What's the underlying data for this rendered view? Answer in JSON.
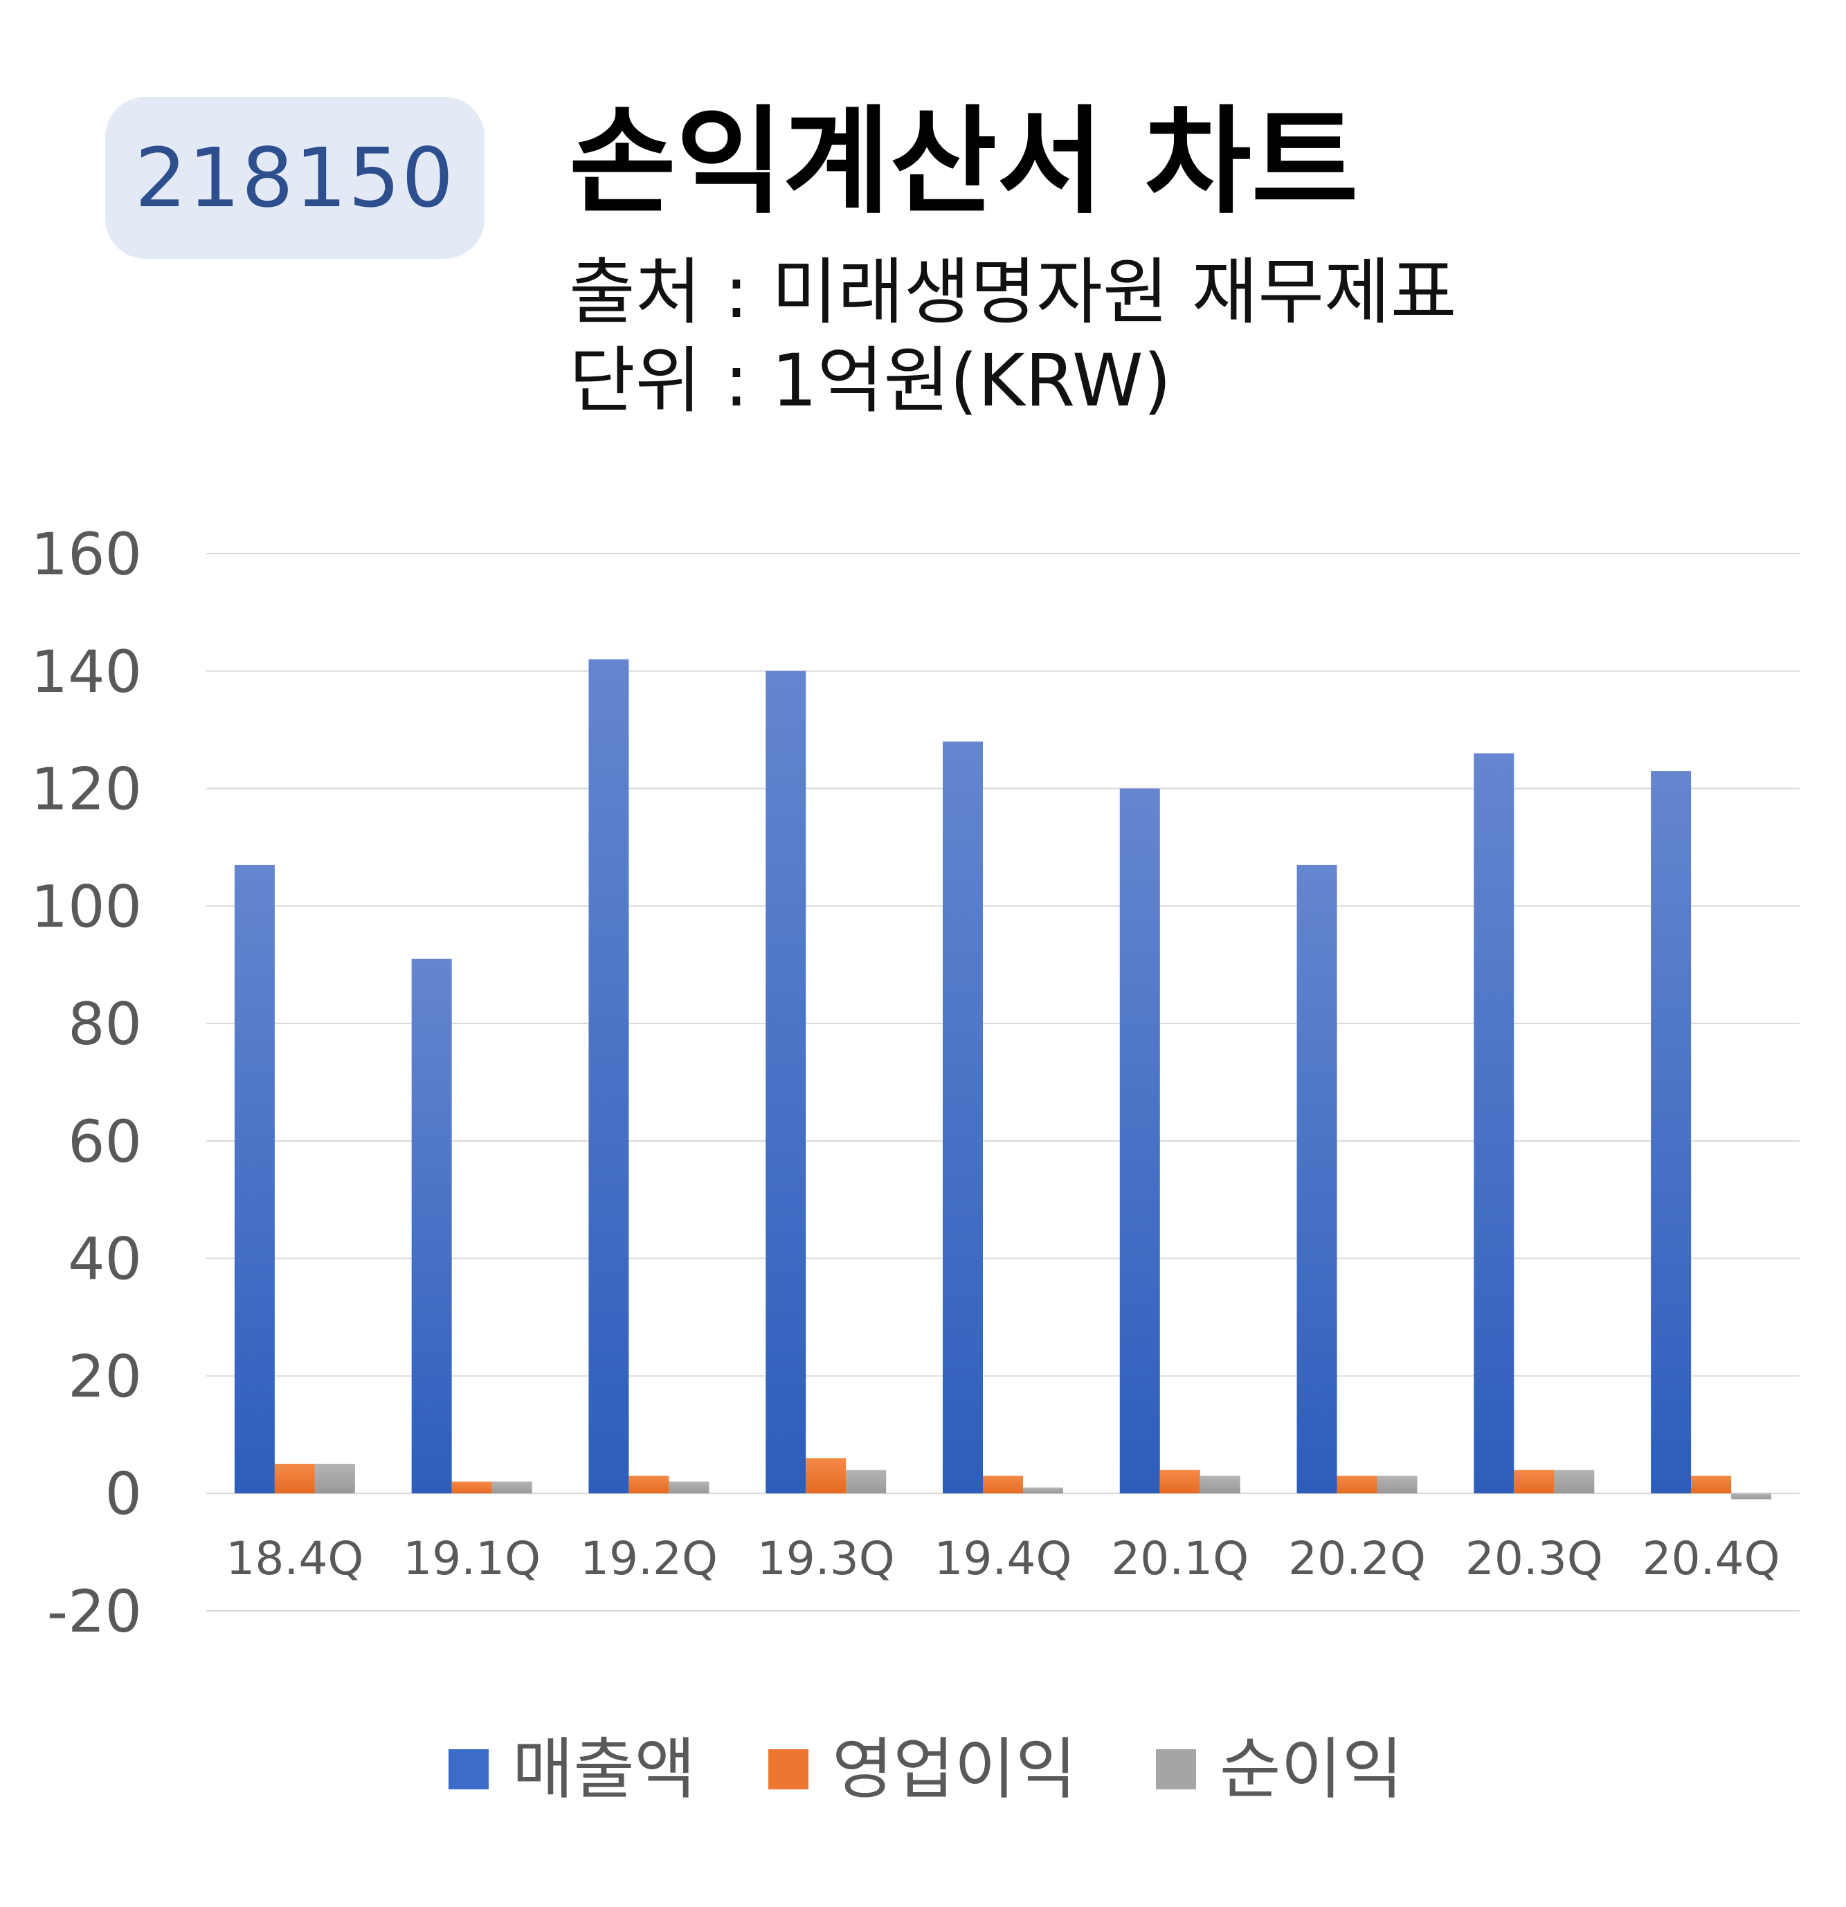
{
  "header": {
    "code": "218150",
    "title": "손익계산서 차트",
    "source": "출처 : 미래생명자원 재무제표",
    "unit": "단위 : 1억원(KRW)"
  },
  "colors": {
    "revenue": "#3b6cc9",
    "operating": "#ed7630",
    "net": "#a5a5a5",
    "grid": "#d9d9d9",
    "axis_text": "#595959"
  },
  "chart_data": {
    "type": "bar",
    "categories": [
      "18.4Q",
      "19.1Q",
      "19.2Q",
      "19.3Q",
      "19.4Q",
      "20.1Q",
      "20.2Q",
      "20.3Q",
      "20.4Q"
    ],
    "series": [
      {
        "name": "매출액",
        "values": [
          107,
          91,
          142,
          140,
          128,
          120,
          107,
          126,
          123
        ]
      },
      {
        "name": "영업이익",
        "values": [
          5,
          2,
          3,
          6,
          3,
          4,
          3,
          4,
          3
        ]
      },
      {
        "name": "순이익",
        "values": [
          5,
          2,
          2,
          4,
          1,
          3,
          3,
          4,
          -1
        ]
      }
    ],
    "yticks": [
      "-20",
      "0",
      "20",
      "40",
      "60",
      "80",
      "100",
      "120",
      "140",
      "160"
    ],
    "ylim": [
      -20,
      160
    ],
    "grid": true,
    "legend": "bottom"
  }
}
